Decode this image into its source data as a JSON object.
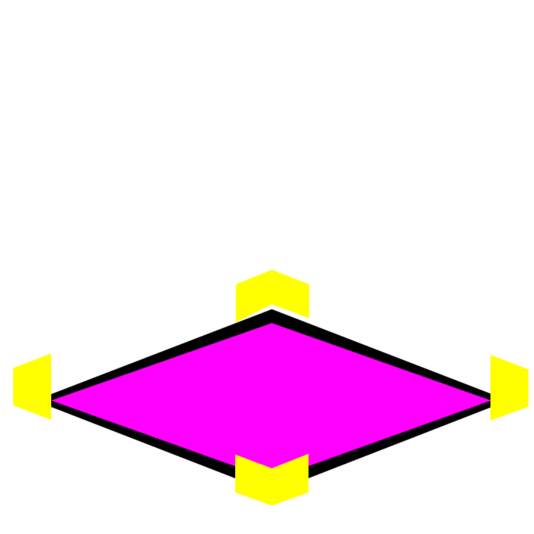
{
  "colors": {
    "background": "#ffffff",
    "tile_fill": "#ff00ff",
    "tile_border": "#000000",
    "post": "#ffff00"
  },
  "tile": {
    "type": "isometric-floor-tile"
  },
  "corner_posts": [
    {
      "name": "corner-post-top"
    },
    {
      "name": "corner-post-left"
    },
    {
      "name": "corner-post-right"
    },
    {
      "name": "corner-post-bottom"
    }
  ]
}
